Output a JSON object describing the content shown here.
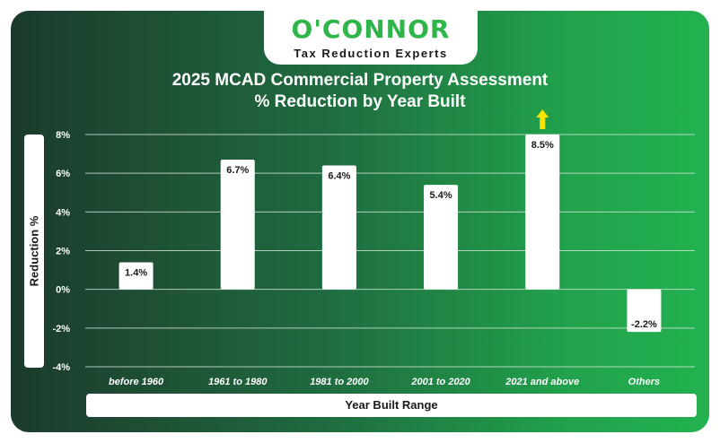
{
  "brand": {
    "name": "O'CONNOR",
    "tagline": "Tax Reduction Experts"
  },
  "colors": {
    "bar": "#ffffff",
    "gridline": "#d9e6dd",
    "arrow": "#f5e400",
    "text_light": "#ffffff",
    "text_dark": "#1a1a1a"
  },
  "chart_data": {
    "type": "bar",
    "title_lines": [
      "2025 MCAD Commercial Property Assessment",
      "% Reduction by Year Built"
    ],
    "xlabel": "Year Built Range",
    "ylabel": "Reduction %",
    "categories": [
      "before 1960",
      "1961 to 1980",
      "1981 to 2000",
      "2001 to 2020",
      "2021 and above",
      "Others"
    ],
    "values": [
      1.4,
      6.7,
      6.4,
      5.4,
      8.5,
      -2.2
    ],
    "value_labels": [
      "1.4%",
      "6.7%",
      "6.4%",
      "5.4%",
      "8.5%",
      "-2.2%"
    ],
    "ylim": [
      -4,
      8
    ],
    "yticks": [
      8,
      6,
      4,
      2,
      0,
      -2,
      -4
    ],
    "ytick_labels": [
      "8%",
      "6%",
      "4%",
      "2%",
      "0%",
      "-2%",
      "-4%"
    ],
    "grid": true,
    "annotations": [
      {
        "category": "2021 and above",
        "marker": "up-arrow",
        "meaning": "value exceeds axis maximum"
      }
    ]
  }
}
